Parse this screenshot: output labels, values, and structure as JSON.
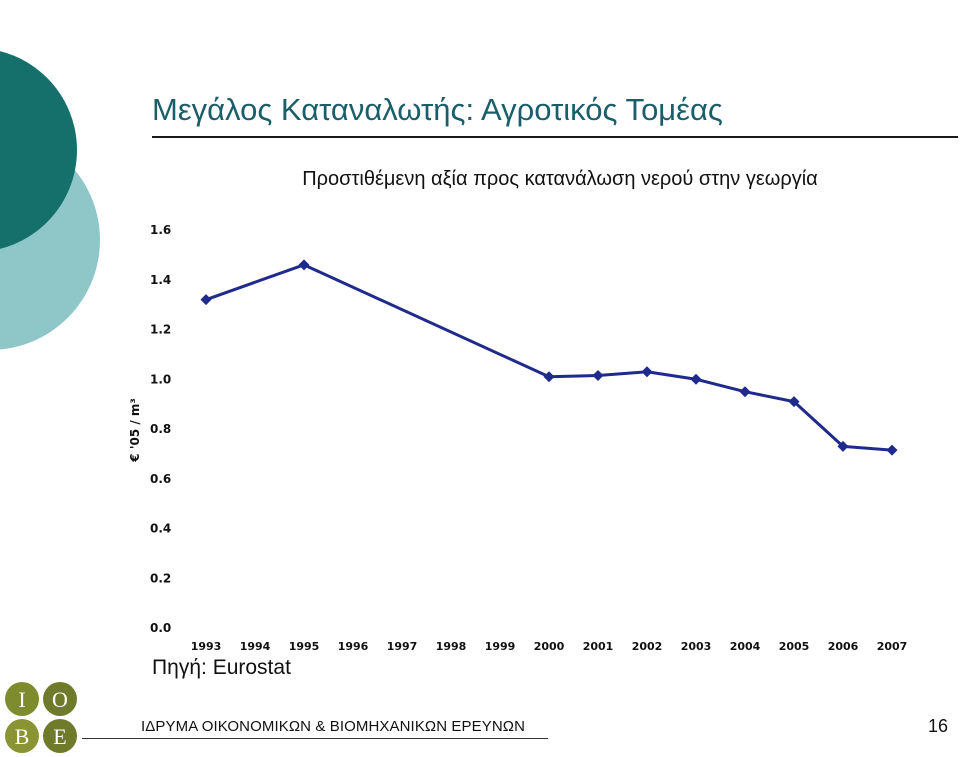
{
  "slide": {
    "title": "Μεγάλος Καταναλωτής: Αγροτικός Τομέας",
    "source": "Πηγή: Eurostat",
    "footer_org": "ΙΔΡΥΜΑ ΟΙΚΟΝΟΜΙΚΩΝ & ΒΙΟΜΗΧΑΝΙΚΩΝ ΕΡΕΥΝΩΝ",
    "page_number": "16",
    "logo_letters": [
      "Ι",
      "Ο",
      "Β",
      "Ε"
    ]
  },
  "colors": {
    "title": "#1b5e6b",
    "series": "#1f2a8c",
    "deco_dark": "#15706b",
    "deco_light": "#8fc7c9"
  },
  "chart_data": {
    "type": "line",
    "title": "Προστιθέμενη αξία προς κατανάλωση νερού στην γεωργία",
    "ylabel": "€ '05 / m³",
    "xlabel": "",
    "ylim": [
      0,
      1.6
    ],
    "y_ticks": [
      "0.0",
      "0.2",
      "0.4",
      "0.6",
      "0.8",
      "1.0",
      "1.2",
      "1.4",
      "1.6"
    ],
    "categories": [
      "1993",
      "1994",
      "1995",
      "1996",
      "1997",
      "1998",
      "1999",
      "2000",
      "2001",
      "2002",
      "2003",
      "2004",
      "2005",
      "2006",
      "2007"
    ],
    "series": [
      {
        "values": [
          1.32,
          null,
          1.46,
          null,
          null,
          null,
          null,
          1.01,
          1.015,
          1.03,
          1.0,
          0.95,
          0.91,
          0.73,
          0.715
        ],
        "color": "#1f2a8c",
        "marker": "diamond"
      }
    ],
    "grid": false,
    "legend": "none"
  }
}
